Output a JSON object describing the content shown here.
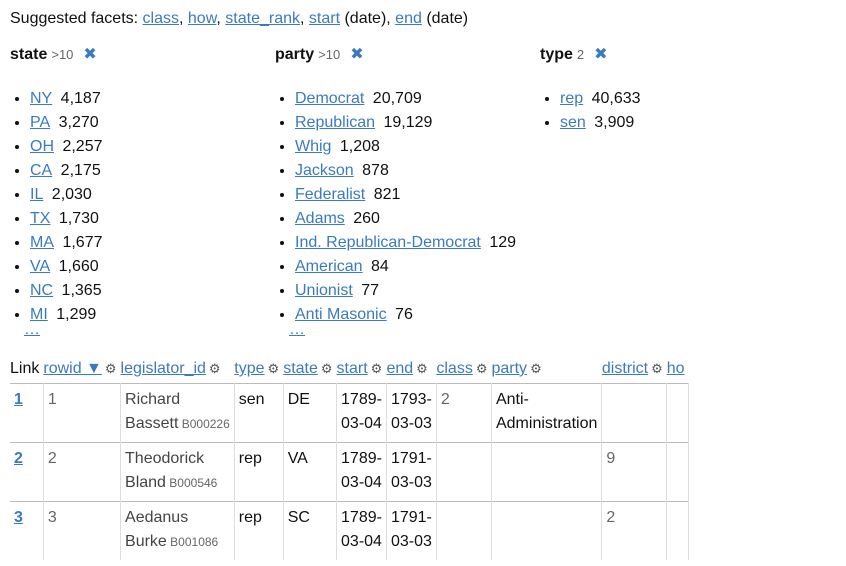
{
  "suggested": {
    "prefix": "Suggested facets:",
    "items": [
      {
        "label": "class",
        "suffix": ","
      },
      {
        "label": "how",
        "suffix": ","
      },
      {
        "label": "state_rank",
        "suffix": ","
      },
      {
        "label": "start",
        "suffix": " (date),"
      },
      {
        "label": "end",
        "suffix": " (date)"
      }
    ]
  },
  "facets": [
    {
      "name": "state",
      "count": ">10",
      "items": [
        {
          "label": "NY",
          "count": "4,187"
        },
        {
          "label": "PA",
          "count": "3,270"
        },
        {
          "label": "OH",
          "count": "2,257"
        },
        {
          "label": "CA",
          "count": "2,175"
        },
        {
          "label": "IL",
          "count": "2,030"
        },
        {
          "label": "TX",
          "count": "1,730"
        },
        {
          "label": "MA",
          "count": "1,677"
        },
        {
          "label": "VA",
          "count": "1,660"
        },
        {
          "label": "NC",
          "count": "1,365"
        },
        {
          "label": "MI",
          "count": "1,299"
        }
      ],
      "more": "…"
    },
    {
      "name": "party",
      "count": ">10",
      "items": [
        {
          "label": "Democrat",
          "count": "20,709"
        },
        {
          "label": "Republican",
          "count": "19,129"
        },
        {
          "label": "Whig",
          "count": "1,208"
        },
        {
          "label": "Jackson",
          "count": "878"
        },
        {
          "label": "Federalist",
          "count": "821"
        },
        {
          "label": "Adams",
          "count": "260"
        },
        {
          "label": "Ind. Republican-Democrat",
          "count": "129"
        },
        {
          "label": "American",
          "count": "84"
        },
        {
          "label": "Unionist",
          "count": "77"
        },
        {
          "label": "Anti Masonic",
          "count": "76"
        }
      ],
      "more": "…"
    },
    {
      "name": "type",
      "count": "2",
      "items": [
        {
          "label": "rep",
          "count": "40,633"
        },
        {
          "label": "sen",
          "count": "3,909"
        }
      ],
      "more": ""
    }
  ],
  "remove_glyph": "✖",
  "gear_glyph": "⚙",
  "table": {
    "columns": [
      {
        "key": "link",
        "label": "Link",
        "linked": false,
        "gear": false,
        "sort": ""
      },
      {
        "key": "rowid",
        "label": "rowid",
        "linked": true,
        "gear": true,
        "sort": " ▼"
      },
      {
        "key": "legislator_id",
        "label": "legislator_id",
        "linked": true,
        "gear": true,
        "sort": ""
      },
      {
        "key": "type",
        "label": "type",
        "linked": true,
        "gear": true,
        "sort": ""
      },
      {
        "key": "state",
        "label": "state",
        "linked": true,
        "gear": true,
        "sort": ""
      },
      {
        "key": "start",
        "label": "start",
        "linked": true,
        "gear": true,
        "sort": ""
      },
      {
        "key": "end",
        "label": "end",
        "linked": true,
        "gear": true,
        "sort": ""
      },
      {
        "key": "class",
        "label": "class",
        "linked": true,
        "gear": true,
        "sort": ""
      },
      {
        "key": "party",
        "label": "party",
        "linked": true,
        "gear": true,
        "sort": ""
      },
      {
        "key": "district",
        "label": "district",
        "linked": true,
        "gear": true,
        "sort": ""
      },
      {
        "key": "how",
        "label": "ho",
        "linked": true,
        "gear": false,
        "sort": ""
      }
    ],
    "rows": [
      {
        "link": "1",
        "rowid": "1",
        "name_first": "Richard",
        "name_last": "Bassett",
        "legislator_id": "B000226",
        "type": "sen",
        "state": "DE",
        "start_a": "1789-",
        "start_b": "03-04",
        "end_a": "1793-",
        "end_b": "03-03",
        "class": "2",
        "party_a": "Anti-",
        "party_b": "Administration",
        "district": "",
        "how": ""
      },
      {
        "link": "2",
        "rowid": "2",
        "name_first": "Theodorick",
        "name_last": "Bland",
        "legislator_id": "B000546",
        "type": "rep",
        "state": "VA",
        "start_a": "1789-",
        "start_b": "03-04",
        "end_a": "1791-",
        "end_b": "03-03",
        "class": "",
        "party_a": "",
        "party_b": "",
        "district": "9",
        "how": ""
      },
      {
        "link": "3",
        "rowid": "3",
        "name_first": "Aedanus",
        "name_last": "Burke",
        "legislator_id": "B001086",
        "type": "rep",
        "state": "SC",
        "start_a": "1789-",
        "start_b": "03-04",
        "end_a": "1791-",
        "end_b": "03-03",
        "class": "",
        "party_a": "",
        "party_b": "",
        "district": "2",
        "how": ""
      }
    ]
  }
}
